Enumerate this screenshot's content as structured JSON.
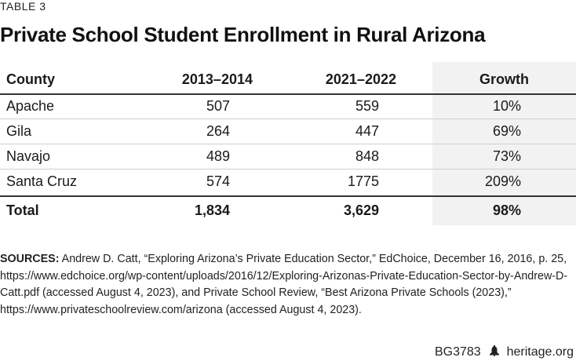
{
  "table_label": "TABLE 3",
  "title": "Private School Student Enrollment in Rural Arizona",
  "columns": [
    "County",
    "2013–2014",
    "2021–2022",
    "Growth"
  ],
  "rows": [
    {
      "county": "Apache",
      "y2013": "507",
      "y2021": "559",
      "growth": "10%"
    },
    {
      "county": "Gila",
      "y2013": "264",
      "y2021": "447",
      "growth": "69%"
    },
    {
      "county": "Navajo",
      "y2013": "489",
      "y2021": "848",
      "growth": "73%"
    },
    {
      "county": "Santa Cruz",
      "y2013": "574",
      "y2021": "1775",
      "growth": "209%"
    }
  ],
  "total": {
    "label": "Total",
    "y2013": "1,834",
    "y2021": "3,629",
    "growth": "98%"
  },
  "sources": {
    "label": "SOURCES:",
    "text": "Andrew D. Catt, “Exploring Arizona’s Private Education Sector,” EdChoice, December 16, 2016, p. 25, https://www.edchoice.org/wp-content/uploads/2016/12/Exploring-Arizonas-Private-Education-Sector-by-Andrew-D-Catt.pdf (accessed August 4, 2023), and Private School Review, “Best Arizona Private Schools (2023),” https://www.privateschoolreview.com/arizona (accessed August 4, 2023)."
  },
  "footer": {
    "code": "BG3783",
    "site": "heritage.org",
    "icon": "liberty-bell-icon"
  }
}
